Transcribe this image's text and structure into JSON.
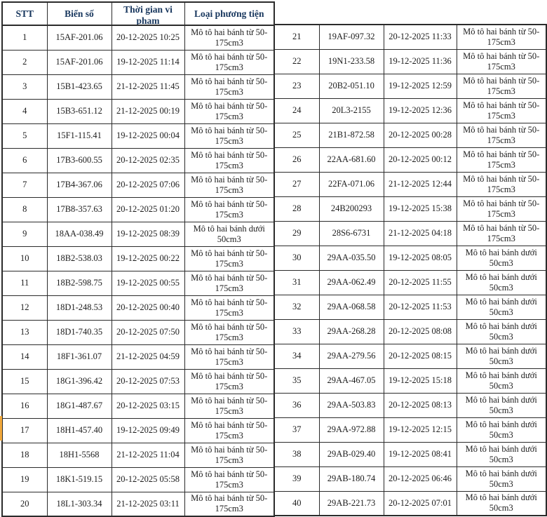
{
  "colors": {
    "background": "#ffffff",
    "border": "#2b2b2b",
    "header_text": "#17365d",
    "body_text": "#1c1c1c",
    "row17_marker": "#f0a73a"
  },
  "table": {
    "headers": {
      "stt": "STT",
      "plate": "Biển số",
      "time": "Thời gian vi phạm",
      "type": "Loại phương tiện"
    },
    "left_rows": [
      {
        "stt": "1",
        "plate": "15AF-201.06",
        "time": "20-12-2025 10:25",
        "type": "Mô tô hai bánh từ 50-175cm3"
      },
      {
        "stt": "2",
        "plate": "15AF-201.06",
        "time": "19-12-2025 11:14",
        "type": "Mô tô hai bánh từ 50-175cm3"
      },
      {
        "stt": "3",
        "plate": "15B1-423.65",
        "time": "21-12-2025 11:45",
        "type": "Mô tô hai bánh từ 50-175cm3"
      },
      {
        "stt": "4",
        "plate": "15B3-651.12",
        "time": "21-12-2025 00:19",
        "type": "Mô tô hai bánh từ 50-175cm3"
      },
      {
        "stt": "5",
        "plate": "15F1-115.41",
        "time": "19-12-2025 00:04",
        "type": "Mô tô hai bánh từ 50-175cm3"
      },
      {
        "stt": "6",
        "plate": "17B3-600.55",
        "time": "20-12-2025 02:35",
        "type": "Mô tô hai bánh từ 50-175cm3"
      },
      {
        "stt": "7",
        "plate": "17B4-367.06",
        "time": "20-12-2025 07:06",
        "type": "Mô tô hai bánh từ 50-175cm3"
      },
      {
        "stt": "8",
        "plate": "17B8-357.63",
        "time": "20-12-2025 01:20",
        "type": "Mô tô hai bánh từ 50-175cm3"
      },
      {
        "stt": "9",
        "plate": "18AA-038.49",
        "time": "19-12-2025 08:39",
        "type": "Mô tô hai bánh dưới 50cm3"
      },
      {
        "stt": "10",
        "plate": "18B2-538.03",
        "time": "19-12-2025 00:22",
        "type": "Mô tô hai bánh từ 50-175cm3"
      },
      {
        "stt": "11",
        "plate": "18B2-598.75",
        "time": "19-12-2025 00:55",
        "type": "Mô tô hai bánh từ 50-175cm3"
      },
      {
        "stt": "12",
        "plate": "18D1-248.53",
        "time": "20-12-2025 00:40",
        "type": "Mô tô hai bánh từ 50-175cm3"
      },
      {
        "stt": "13",
        "plate": "18D1-740.35",
        "time": "20-12-2025 07:50",
        "type": "Mô tô hai bánh từ 50-175cm3"
      },
      {
        "stt": "14",
        "plate": "18F1-361.07",
        "time": "21-12-2025 04:59",
        "type": "Mô tô hai bánh từ 50-175cm3"
      },
      {
        "stt": "15",
        "plate": "18G1-396.42",
        "time": "20-12-2025 07:53",
        "type": "Mô tô hai bánh từ 50-175cm3"
      },
      {
        "stt": "16",
        "plate": "18G1-487.67",
        "time": "20-12-2025 03:15",
        "type": "Mô tô hai bánh từ 50-175cm3"
      },
      {
        "stt": "17",
        "plate": "18H1-457.40",
        "time": "19-12-2025 09:49",
        "type": "Mô tô hai bánh từ 50-175cm3"
      },
      {
        "stt": "18",
        "plate": "18H1-5568",
        "time": "21-12-2025 11:04",
        "type": "Mô tô hai bánh từ 50-175cm3"
      },
      {
        "stt": "19",
        "plate": "18K1-519.15",
        "time": "20-12-2025 05:58",
        "type": "Mô tô hai bánh từ 50-175cm3"
      },
      {
        "stt": "20",
        "plate": "18L1-303.34",
        "time": "21-12-2025 03:11",
        "type": "Mô tô hai bánh từ 50-175cm3"
      }
    ],
    "right_rows": [
      {
        "stt": "21",
        "plate": "19AF-097.32",
        "time": "20-12-2025 11:33",
        "type": "Mô tô hai bánh từ 50-175cm3"
      },
      {
        "stt": "22",
        "plate": "19N1-233.58",
        "time": "19-12-2025 11:36",
        "type": "Mô tô hai bánh từ 50-175cm3"
      },
      {
        "stt": "23",
        "plate": "20B2-051.10",
        "time": "19-12-2025 12:59",
        "type": "Mô tô hai bánh từ 50-175cm3"
      },
      {
        "stt": "24",
        "plate": "20L3-2155",
        "time": "19-12-2025 12:36",
        "type": "Mô tô hai bánh từ 50-175cm3"
      },
      {
        "stt": "25",
        "plate": "21B1-872.58",
        "time": "20-12-2025 00:28",
        "type": "Mô tô hai bánh từ 50-175cm3"
      },
      {
        "stt": "26",
        "plate": "22AA-681.60",
        "time": "20-12-2025 00:12",
        "type": "Mô tô hai bánh từ 50-175cm3"
      },
      {
        "stt": "27",
        "plate": "22FA-071.06",
        "time": "21-12-2025 12:44",
        "type": "Mô tô hai bánh từ 50-175cm3"
      },
      {
        "stt": "28",
        "plate": "24B200293",
        "time": "19-12-2025 15:38",
        "type": "Mô tô hai bánh từ 50-175cm3"
      },
      {
        "stt": "29",
        "plate": "28S6-6731",
        "time": "21-12-2025 04:18",
        "type": "Mô tô hai bánh từ 50-175cm3"
      },
      {
        "stt": "30",
        "plate": "29AA-035.50",
        "time": "19-12-2025 08:05",
        "type": "Mô tô hai bánh dưới 50cm3"
      },
      {
        "stt": "31",
        "plate": "29AA-062.49",
        "time": "20-12-2025 11:55",
        "type": "Mô tô hai bánh dưới 50cm3"
      },
      {
        "stt": "32",
        "plate": "29AA-068.58",
        "time": "20-12-2025 11:53",
        "type": "Mô tô hai bánh dưới 50cm3"
      },
      {
        "stt": "33",
        "plate": "29AA-268.28",
        "time": "20-12-2025 08:08",
        "type": "Mô tô hai bánh dưới 50cm3"
      },
      {
        "stt": "34",
        "plate": "29AA-279.56",
        "time": "20-12-2025 08:15",
        "type": "Mô tô hai bánh dưới 50cm3"
      },
      {
        "stt": "35",
        "plate": "29AA-467.05",
        "time": "19-12-2025 15:18",
        "type": "Mô tô hai bánh dưới 50cm3"
      },
      {
        "stt": "36",
        "plate": "29AA-503.83",
        "time": "20-12-2025 08:13",
        "type": "Mô tô hai bánh dưới 50cm3"
      },
      {
        "stt": "37",
        "plate": "29AA-972.88",
        "time": "19-12-2025 12:15",
        "type": "Mô tô hai bánh dưới 50cm3"
      },
      {
        "stt": "38",
        "plate": "29AB-029.40",
        "time": "19-12-2025 08:41",
        "type": "Mô tô hai bánh dưới 50cm3"
      },
      {
        "stt": "39",
        "plate": "29AB-180.74",
        "time": "20-12-2025 06:46",
        "type": "Mô tô hai bánh dưới 50cm3"
      },
      {
        "stt": "40",
        "plate": "29AB-221.73",
        "time": "20-12-2025 07:01",
        "type": "Mô tô hai bánh dưới 50cm3"
      }
    ]
  }
}
